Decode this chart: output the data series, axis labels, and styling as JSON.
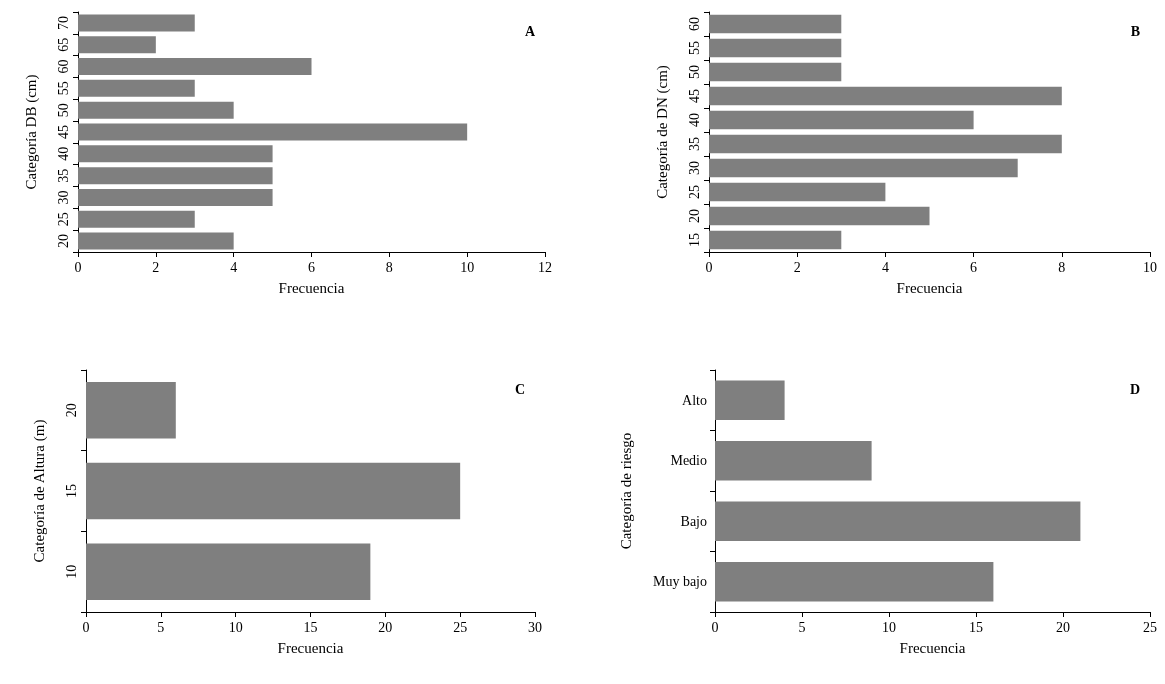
{
  "chart_data": [
    {
      "type": "bar",
      "orientation": "horizontal",
      "categories": [
        "70",
        "65",
        "60",
        "55",
        "50",
        "45",
        "40",
        "35",
        "30",
        "25",
        "20"
      ],
      "values": [
        3,
        2,
        6,
        3,
        4,
        10,
        5,
        5,
        5,
        3,
        4
      ],
      "color": "#7f7f7f",
      "xlim": [
        0,
        12
      ],
      "xticks": [
        0,
        2,
        4,
        6,
        8,
        10,
        12
      ],
      "xlabel": "Frecuencia",
      "ylabel": "Categoría DB (cm)",
      "annotations": [
        "A"
      ]
    },
    {
      "type": "bar",
      "orientation": "horizontal",
      "categories": [
        "60",
        "55",
        "50",
        "45",
        "40",
        "35",
        "30",
        "25",
        "20",
        "15"
      ],
      "values": [
        3,
        3,
        3,
        8,
        6,
        8,
        7,
        4,
        5,
        3
      ],
      "color": "#7f7f7f",
      "xlim": [
        0,
        10
      ],
      "xticks": [
        0,
        2,
        4,
        6,
        8,
        10
      ],
      "xlabel": "Frecuencia",
      "ylabel": "Categoría de DN (cm)",
      "annotations": [
        "B"
      ]
    },
    {
      "type": "bar",
      "orientation": "horizontal",
      "categories": [
        "20",
        "15",
        "10"
      ],
      "values": [
        6,
        25,
        19
      ],
      "color": "#7f7f7f",
      "xlim": [
        0,
        30
      ],
      "xticks": [
        0,
        5,
        10,
        15,
        20,
        25,
        30
      ],
      "xlabel": "Frecuencia",
      "ylabel": "Categoría de Altura (m)",
      "annotations": [
        "C"
      ]
    },
    {
      "type": "bar",
      "orientation": "horizontal",
      "categories": [
        "Alto",
        "Medio",
        "Bajo",
        "Muy bajo"
      ],
      "values": [
        4,
        9,
        21,
        16
      ],
      "color": "#7f7f7f",
      "xlim": [
        0,
        25
      ],
      "xticks": [
        0,
        5,
        10,
        15,
        20,
        25
      ],
      "xlabel": "Frecuencia",
      "ylabel": "Categoría de riesgo",
      "annotations": [
        "D"
      ]
    }
  ]
}
